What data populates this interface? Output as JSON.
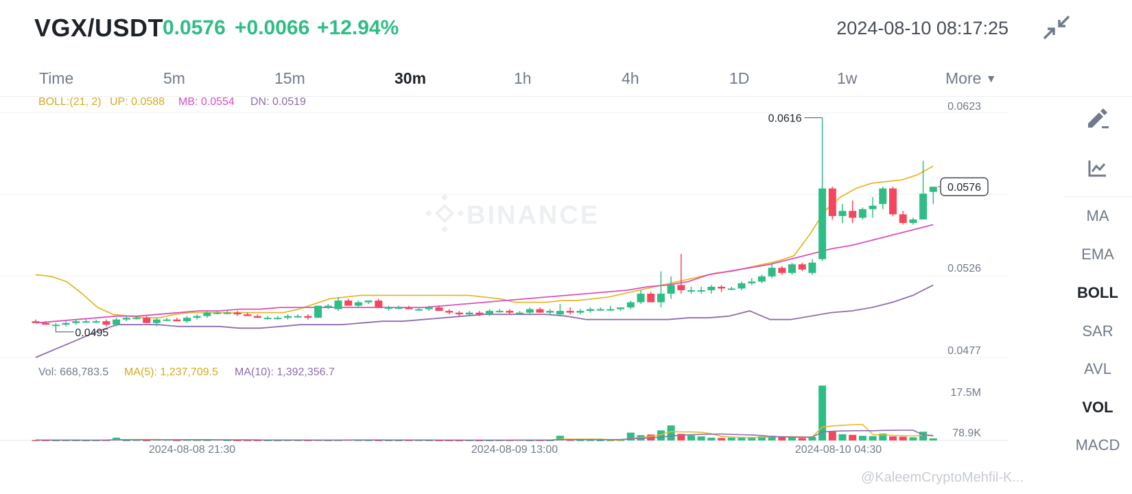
{
  "header": {
    "pair": "VGX/USDT",
    "last_price": "0.0576",
    "change_abs": "+0.0066",
    "change_pct": "+12.94%",
    "datetime": "2024-08-10 08:17:25",
    "collapse_icon": "collapse-arrows-icon"
  },
  "tabs": [
    {
      "label": "Time"
    },
    {
      "label": "5m"
    },
    {
      "label": "15m"
    },
    {
      "label": "30m",
      "active": true
    },
    {
      "label": "1h"
    },
    {
      "label": "4h"
    },
    {
      "label": "1D"
    },
    {
      "label": "1w"
    },
    {
      "label": "More"
    }
  ],
  "boll_legend": {
    "name": "BOLL:(21, 2)",
    "up": "UP: 0.0588",
    "mb": "MB: 0.0554",
    "dn": "DN: 0.0519"
  },
  "vol_legend": {
    "vol": "Vol: 668,783.5",
    "ma5": "MA(5): 1,237,709.5",
    "ma10": "MA(10): 1,392,356.7"
  },
  "price_axis": [
    "0.0623",
    "0.0526",
    "0.0477"
  ],
  "vol_axis": [
    "17.5M",
    "78.9K"
  ],
  "time_axis": [
    "2024-08-08 21:30",
    "2024-08-09 13:00",
    "2024-08-10 04:30"
  ],
  "annotations": {
    "high": "0.0616",
    "low": "0.0495",
    "current": "0.0576"
  },
  "watermark_brand": "BINANCE",
  "watermark_user": "@KaleemCryptoMehfil-K...",
  "sidebar": {
    "icons": [
      "pencil-draw-icon",
      "chart-indicator-icon"
    ],
    "items": [
      {
        "label": "MA"
      },
      {
        "label": "EMA"
      },
      {
        "label": "BOLL",
        "active": true
      },
      {
        "label": "SAR"
      },
      {
        "label": "AVL"
      },
      {
        "label": "VOL",
        "active": true
      },
      {
        "label": "MACD"
      }
    ]
  },
  "colors": {
    "up": "#2ebd85",
    "down": "#f6465d",
    "boll_up": "#e4b92a",
    "boll_mb": "#d94fbd",
    "boll_dn": "#8e6cb0"
  },
  "chart_data": {
    "type": "candlestick",
    "ylim": [
      0.0477,
      0.0623
    ],
    "candles": [
      {
        "o": 0.0498,
        "h": 0.0499,
        "l": 0.0497,
        "c": 0.0497
      },
      {
        "o": 0.0497,
        "h": 0.0498,
        "l": 0.0496,
        "c": 0.0496
      },
      {
        "o": 0.0496,
        "h": 0.0497,
        "l": 0.0495,
        "c": 0.0496
      },
      {
        "o": 0.0496,
        "h": 0.0498,
        "l": 0.0495,
        "c": 0.0497
      },
      {
        "o": 0.0497,
        "h": 0.0499,
        "l": 0.0496,
        "c": 0.0498
      },
      {
        "o": 0.0498,
        "h": 0.0499,
        "l": 0.0497,
        "c": 0.0498
      },
      {
        "o": 0.0498,
        "h": 0.0499,
        "l": 0.0497,
        "c": 0.0498
      },
      {
        "o": 0.0498,
        "h": 0.0499,
        "l": 0.0495,
        "c": 0.0496
      },
      {
        "o": 0.0496,
        "h": 0.05,
        "l": 0.0495,
        "c": 0.0499
      },
      {
        "o": 0.0499,
        "h": 0.0501,
        "l": 0.0498,
        "c": 0.05
      },
      {
        "o": 0.05,
        "h": 0.0501,
        "l": 0.0499,
        "c": 0.05
      },
      {
        "o": 0.05,
        "h": 0.0501,
        "l": 0.0497,
        "c": 0.0497
      },
      {
        "o": 0.0497,
        "h": 0.05,
        "l": 0.0495,
        "c": 0.0499
      },
      {
        "o": 0.0499,
        "h": 0.05,
        "l": 0.0498,
        "c": 0.0499
      },
      {
        "o": 0.0499,
        "h": 0.05,
        "l": 0.0498,
        "c": 0.0498
      },
      {
        "o": 0.0498,
        "h": 0.0501,
        "l": 0.0497,
        "c": 0.05
      },
      {
        "o": 0.05,
        "h": 0.0502,
        "l": 0.0499,
        "c": 0.0501
      },
      {
        "o": 0.0501,
        "h": 0.0504,
        "l": 0.05,
        "c": 0.0503
      },
      {
        "o": 0.0503,
        "h": 0.0504,
        "l": 0.0502,
        "c": 0.0503
      },
      {
        "o": 0.0503,
        "h": 0.0504,
        "l": 0.0502,
        "c": 0.0503
      },
      {
        "o": 0.0503,
        "h": 0.0504,
        "l": 0.0501,
        "c": 0.0502
      },
      {
        "o": 0.0502,
        "h": 0.0503,
        "l": 0.0501,
        "c": 0.0501
      },
      {
        "o": 0.0501,
        "h": 0.0502,
        "l": 0.05,
        "c": 0.05
      },
      {
        "o": 0.05,
        "h": 0.0501,
        "l": 0.0499,
        "c": 0.05
      },
      {
        "o": 0.05,
        "h": 0.0501,
        "l": 0.0499,
        "c": 0.05
      },
      {
        "o": 0.05,
        "h": 0.0502,
        "l": 0.0499,
        "c": 0.0501
      },
      {
        "o": 0.0501,
        "h": 0.0502,
        "l": 0.05,
        "c": 0.0501
      },
      {
        "o": 0.0501,
        "h": 0.0502,
        "l": 0.0499,
        "c": 0.05
      },
      {
        "o": 0.05,
        "h": 0.0507,
        "l": 0.05,
        "c": 0.0507
      },
      {
        "o": 0.0507,
        "h": 0.0508,
        "l": 0.0505,
        "c": 0.0507
      },
      {
        "o": 0.0505,
        "h": 0.0512,
        "l": 0.0504,
        "c": 0.051
      },
      {
        "o": 0.051,
        "h": 0.0511,
        "l": 0.0507,
        "c": 0.0507
      },
      {
        "o": 0.0507,
        "h": 0.051,
        "l": 0.0506,
        "c": 0.0509
      },
      {
        "o": 0.0509,
        "h": 0.051,
        "l": 0.0508,
        "c": 0.051
      },
      {
        "o": 0.051,
        "h": 0.0511,
        "l": 0.0506,
        "c": 0.0506
      },
      {
        "o": 0.0506,
        "h": 0.0507,
        "l": 0.0504,
        "c": 0.0506
      },
      {
        "o": 0.0506,
        "h": 0.0507,
        "l": 0.0505,
        "c": 0.0506
      },
      {
        "o": 0.0506,
        "h": 0.0507,
        "l": 0.0505,
        "c": 0.0505
      },
      {
        "o": 0.0505,
        "h": 0.0506,
        "l": 0.0504,
        "c": 0.0505
      },
      {
        "o": 0.0505,
        "h": 0.0507,
        "l": 0.0504,
        "c": 0.0506
      },
      {
        "o": 0.0506,
        "h": 0.0507,
        "l": 0.0504,
        "c": 0.0504
      },
      {
        "o": 0.0504,
        "h": 0.0505,
        "l": 0.0502,
        "c": 0.0503
      },
      {
        "o": 0.0503,
        "h": 0.0504,
        "l": 0.0501,
        "c": 0.0502
      },
      {
        "o": 0.0502,
        "h": 0.0504,
        "l": 0.0501,
        "c": 0.0503
      },
      {
        "o": 0.0503,
        "h": 0.0504,
        "l": 0.0501,
        "c": 0.0502
      },
      {
        "o": 0.0502,
        "h": 0.0505,
        "l": 0.0501,
        "c": 0.0504
      },
      {
        "o": 0.0504,
        "h": 0.0505,
        "l": 0.0503,
        "c": 0.0504
      },
      {
        "o": 0.0504,
        "h": 0.0505,
        "l": 0.0502,
        "c": 0.0503
      },
      {
        "o": 0.0503,
        "h": 0.0504,
        "l": 0.0502,
        "c": 0.0503
      },
      {
        "o": 0.0503,
        "h": 0.0506,
        "l": 0.0502,
        "c": 0.0505
      },
      {
        "o": 0.0505,
        "h": 0.0506,
        "l": 0.0503,
        "c": 0.0503
      },
      {
        "o": 0.0503,
        "h": 0.0505,
        "l": 0.0502,
        "c": 0.0504
      },
      {
        "o": 0.0502,
        "h": 0.0508,
        "l": 0.0501,
        "c": 0.0504
      },
      {
        "o": 0.0504,
        "h": 0.0506,
        "l": 0.0502,
        "c": 0.0503
      },
      {
        "o": 0.0503,
        "h": 0.0505,
        "l": 0.0502,
        "c": 0.0504
      },
      {
        "o": 0.0504,
        "h": 0.0506,
        "l": 0.0503,
        "c": 0.0505
      },
      {
        "o": 0.0505,
        "h": 0.0506,
        "l": 0.0504,
        "c": 0.0505
      },
      {
        "o": 0.0505,
        "h": 0.0507,
        "l": 0.0504,
        "c": 0.0505
      },
      {
        "o": 0.0505,
        "h": 0.0506,
        "l": 0.0504,
        "c": 0.0506
      },
      {
        "o": 0.0506,
        "h": 0.051,
        "l": 0.0505,
        "c": 0.0509
      },
      {
        "o": 0.0509,
        "h": 0.0516,
        "l": 0.0508,
        "c": 0.0514
      },
      {
        "o": 0.0514,
        "h": 0.0515,
        "l": 0.0509,
        "c": 0.0509
      },
      {
        "o": 0.0509,
        "h": 0.0527,
        "l": 0.0506,
        "c": 0.0514
      },
      {
        "o": 0.0514,
        "h": 0.0524,
        "l": 0.0511,
        "c": 0.0519
      },
      {
        "o": 0.0519,
        "h": 0.0537,
        "l": 0.0514,
        "c": 0.0516
      },
      {
        "o": 0.0516,
        "h": 0.0518,
        "l": 0.0514,
        "c": 0.0516
      },
      {
        "o": 0.0516,
        "h": 0.0518,
        "l": 0.0514,
        "c": 0.0516
      },
      {
        "o": 0.0516,
        "h": 0.0519,
        "l": 0.0514,
        "c": 0.0518
      },
      {
        "o": 0.0518,
        "h": 0.0519,
        "l": 0.0515,
        "c": 0.0517
      },
      {
        "o": 0.0517,
        "h": 0.0518,
        "l": 0.0516,
        "c": 0.0517
      },
      {
        "o": 0.0517,
        "h": 0.0521,
        "l": 0.0516,
        "c": 0.052
      },
      {
        "o": 0.052,
        "h": 0.0523,
        "l": 0.0519,
        "c": 0.0521
      },
      {
        "o": 0.0521,
        "h": 0.0525,
        "l": 0.052,
        "c": 0.0524
      },
      {
        "o": 0.0524,
        "h": 0.0531,
        "l": 0.0523,
        "c": 0.0529
      },
      {
        "o": 0.0529,
        "h": 0.053,
        "l": 0.0525,
        "c": 0.0526
      },
      {
        "o": 0.0526,
        "h": 0.0532,
        "l": 0.0525,
        "c": 0.0531
      },
      {
        "o": 0.0531,
        "h": 0.0532,
        "l": 0.0527,
        "c": 0.0528
      },
      {
        "o": 0.0526,
        "h": 0.0534,
        "l": 0.0525,
        "c": 0.0532
      },
      {
        "o": 0.0534,
        "h": 0.0616,
        "l": 0.0533,
        "c": 0.0575
      },
      {
        "o": 0.0575,
        "h": 0.0576,
        "l": 0.0557,
        "c": 0.0559
      },
      {
        "o": 0.0559,
        "h": 0.0566,
        "l": 0.0555,
        "c": 0.0562
      },
      {
        "o": 0.0562,
        "h": 0.0568,
        "l": 0.0555,
        "c": 0.0558
      },
      {
        "o": 0.0558,
        "h": 0.0564,
        "l": 0.0557,
        "c": 0.0563
      },
      {
        "o": 0.0563,
        "h": 0.057,
        "l": 0.0558,
        "c": 0.0565
      },
      {
        "o": 0.0566,
        "h": 0.0576,
        "l": 0.0563,
        "c": 0.0575
      },
      {
        "o": 0.0575,
        "h": 0.0576,
        "l": 0.0559,
        "c": 0.056
      },
      {
        "o": 0.056,
        "h": 0.0562,
        "l": 0.0554,
        "c": 0.0555
      },
      {
        "o": 0.0555,
        "h": 0.0558,
        "l": 0.0554,
        "c": 0.0557
      },
      {
        "o": 0.0557,
        "h": 0.0591,
        "l": 0.0557,
        "c": 0.0572
      },
      {
        "o": 0.0573,
        "h": 0.0575,
        "l": 0.0566,
        "c": 0.0576
      }
    ],
    "boll_up": [
      0.0525,
      0.0524,
      0.0521,
      0.0514,
      0.0506,
      0.0502,
      0.0501,
      0.05,
      0.05,
      0.0502,
      0.0503,
      0.0503,
      0.0503,
      0.0503,
      0.0503,
      0.0503,
      0.0503,
      0.0505,
      0.0508,
      0.0511,
      0.0512,
      0.0513,
      0.0513,
      0.0513,
      0.0513,
      0.0513,
      0.0513,
      0.0513,
      0.0513,
      0.0512,
      0.0511,
      0.0509,
      0.0509,
      0.0509,
      0.051,
      0.051,
      0.0511,
      0.0512,
      0.0514,
      0.0516,
      0.0518,
      0.052,
      0.0522,
      0.0524,
      0.0526,
      0.0527,
      0.0529,
      0.0531,
      0.0533,
      0.0536,
      0.0548,
      0.0562,
      0.057,
      0.0575,
      0.0578,
      0.0579,
      0.058,
      0.0583,
      0.0588
    ],
    "boll_mb": [
      0.0497,
      0.0498,
      0.0499,
      0.05,
      0.0501,
      0.0501,
      0.0502,
      0.0503,
      0.0504,
      0.0504,
      0.0505,
      0.0505,
      0.0506,
      0.0506,
      0.0506,
      0.0506,
      0.0506,
      0.0506,
      0.0506,
      0.0506,
      0.0507,
      0.0508,
      0.0509,
      0.051,
      0.0511,
      0.0512,
      0.0513,
      0.0514,
      0.0515,
      0.0516,
      0.0518,
      0.0519,
      0.0521,
      0.0525,
      0.0527,
      0.0529,
      0.0531,
      0.0534,
      0.0537,
      0.054,
      0.0542,
      0.0545,
      0.0548,
      0.0551,
      0.0554
    ],
    "boll_dn": [
      0.0477,
      0.0482,
      0.0487,
      0.0492,
      0.0496,
      0.0496,
      0.0496,
      0.0495,
      0.0495,
      0.0495,
      0.0494,
      0.0494,
      0.0495,
      0.0496,
      0.0496,
      0.0496,
      0.0497,
      0.0498,
      0.0498,
      0.0499,
      0.05,
      0.0501,
      0.0502,
      0.0502,
      0.0502,
      0.0502,
      0.0501,
      0.0499,
      0.0499,
      0.0499,
      0.0499,
      0.0499,
      0.05,
      0.05,
      0.0501,
      0.0504,
      0.0499,
      0.0499,
      0.0501,
      0.0503,
      0.0504,
      0.0506,
      0.0509,
      0.0513,
      0.0519
    ],
    "volume_ylim": [
      0,
      17500000
    ],
    "volumes": [
      150000,
      120000,
      100000,
      130000,
      110000,
      100000,
      120000,
      160000,
      900000,
      130000,
      200000,
      140000,
      300000,
      250000,
      150000,
      200000,
      180000,
      160000,
      300000,
      150000,
      120000,
      140000,
      130000,
      110000,
      100000,
      150000,
      140000,
      120000,
      160000,
      120000,
      150000,
      250000,
      170000,
      150000,
      130000,
      120000,
      110000,
      130000,
      140000,
      120000,
      100000,
      110000,
      100000,
      120000,
      90000,
      100000,
      130000,
      150000,
      200000,
      100000,
      130000,
      120000,
      1500000,
      200000,
      150000,
      160000,
      120000,
      130000,
      180000,
      2500000,
      1700000,
      1900000,
      3200000,
      4800000,
      2100000,
      1600000,
      1300000,
      900000,
      800000,
      900000,
      1000000,
      1100000,
      1300000,
      1500000,
      1200000,
      1000000,
      800000,
      1100000,
      17500000,
      2800000,
      2000000,
      1800000,
      1500000,
      1400000,
      2200000,
      1300000,
      1200000,
      1000000,
      2800000,
      668783
    ]
  }
}
